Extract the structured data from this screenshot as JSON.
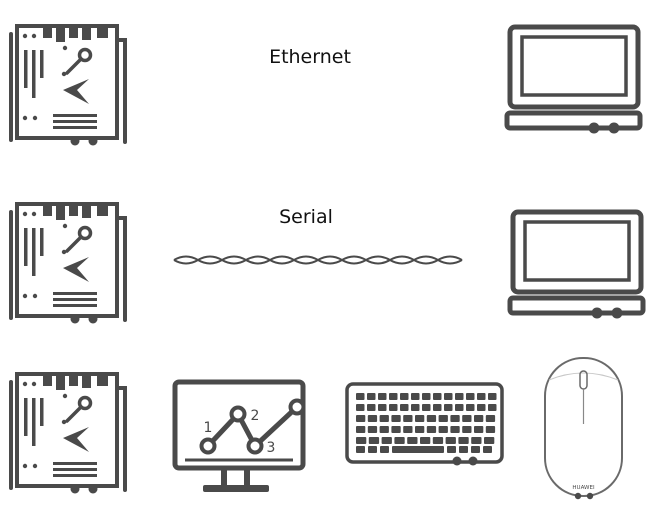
{
  "connections": {
    "ethernet": {
      "label": "Ethernet"
    },
    "serial": {
      "label": "Serial"
    }
  },
  "chart": {
    "points": [
      "1",
      "2",
      "3"
    ]
  },
  "mouse": {
    "brand": "HUAWEI"
  },
  "colors": {
    "stroke": "#4a4a4a",
    "mouse_stroke": "#6a6a6a",
    "ethernet_gradient": [
      "#e8307a",
      "#f07a2a",
      "#e0e030",
      "#4cc070",
      "#20b8c8",
      "#2850d8"
    ]
  }
}
